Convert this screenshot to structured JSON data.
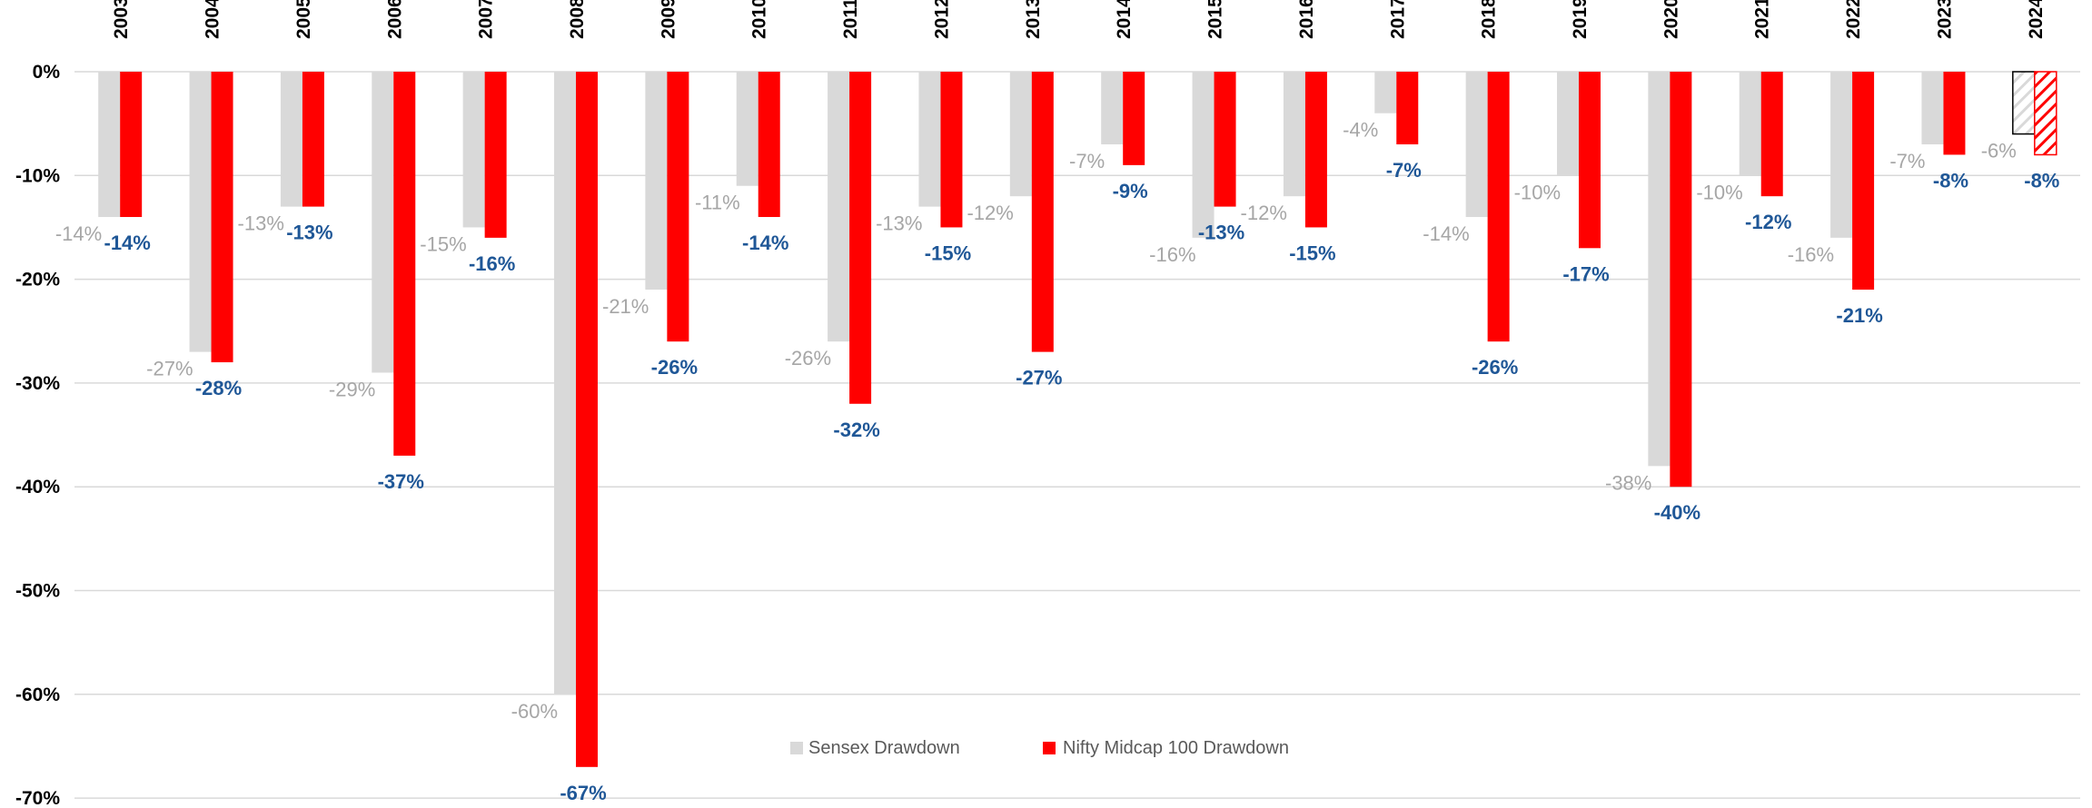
{
  "chart_data": {
    "type": "bar",
    "categories": [
      "2003",
      "2004",
      "2005",
      "2006",
      "2007",
      "2008",
      "2009",
      "2010",
      "2011",
      "2012",
      "2013",
      "2014",
      "2015",
      "2016",
      "2017",
      "2018",
      "2019",
      "2020",
      "2021",
      "2022",
      "2023",
      "2024"
    ],
    "series": [
      {
        "name": "Sensex Drawdown",
        "color": "#d9d9d9",
        "values": [
          -14,
          -27,
          -13,
          -29,
          -15,
          -60,
          -21,
          -11,
          -26,
          -13,
          -12,
          -7,
          -16,
          -12,
          -4,
          -14,
          -10,
          -38,
          -10,
          -16,
          -7,
          -6
        ],
        "labels": [
          "-14%",
          "-27%",
          "-13%",
          "-29%",
          "-15%",
          "-60%",
          "-21%",
          "-11%",
          "-26%",
          "-13%",
          "-12%",
          "-7%",
          "-16%",
          "-12%",
          "-4%",
          "-14%",
          "-10%",
          "-38%",
          "-10%",
          "-16%",
          "-7%",
          "-6%"
        ]
      },
      {
        "name": "Nifty Midcap 100 Drawdown",
        "color": "#ff0000",
        "values": [
          -14,
          -28,
          -13,
          -37,
          -16,
          -67,
          -26,
          -14,
          -32,
          -15,
          -27,
          -9,
          -13,
          -15,
          -7,
          -26,
          -17,
          -40,
          -12,
          -21,
          -8,
          -8
        ],
        "labels": [
          "-14%",
          "-28%",
          "-13%",
          "-37%",
          "-16%",
          "-67%",
          "-26%",
          "-14%",
          "-32%",
          "-15%",
          "-27%",
          "-9%",
          "-13%",
          "-15%",
          "-7%",
          "-26%",
          "-17%",
          "-40%",
          "-12%",
          "-21%",
          "-8%",
          "-8%"
        ]
      }
    ],
    "y_ticks": [
      "0%",
      "-10%",
      "-20%",
      "-30%",
      "-40%",
      "-50%",
      "-60%",
      "-70%"
    ],
    "ylim": [
      -70,
      0
    ],
    "x_axis_position": "top",
    "x_tick_rotation": "vertical",
    "hatched_categories": [
      "2024"
    ],
    "grid": true,
    "legend_position": "bottom-center",
    "label_colors": {
      "sensex": "#a6a6a6",
      "nifty": "#1f5797"
    }
  }
}
